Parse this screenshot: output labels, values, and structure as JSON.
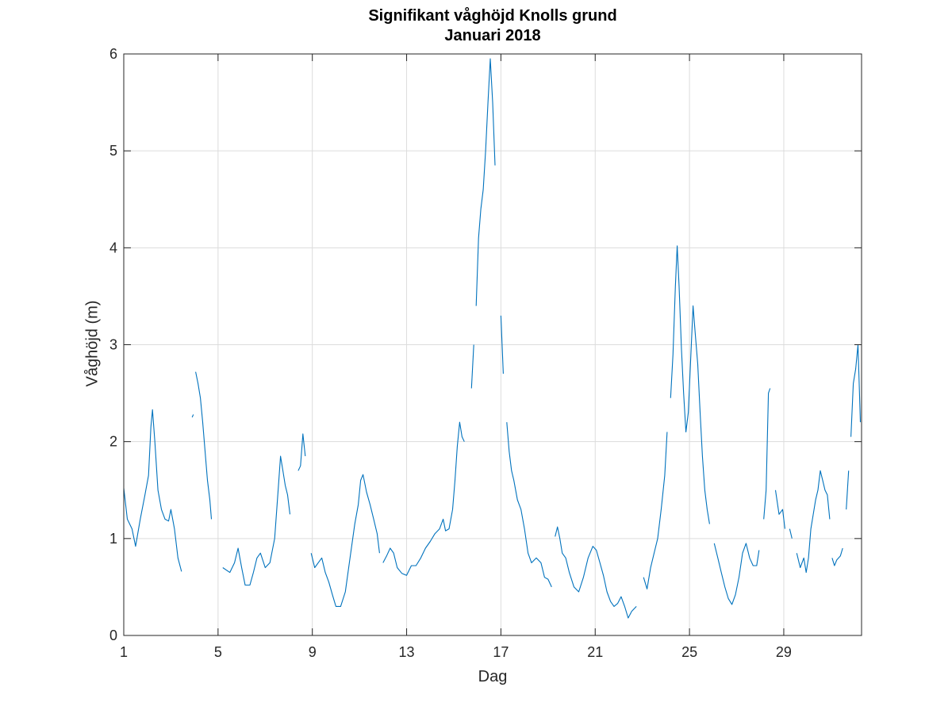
{
  "chart_data": {
    "type": "line",
    "title": "Signifikant våghöjd Knolls grund",
    "subtitle": "Januari 2018",
    "xlabel": "Dag",
    "ylabel": "Våghöjd (m)",
    "xlim": [
      1,
      32.3
    ],
    "ylim": [
      0,
      6
    ],
    "xticks": [
      1,
      5,
      9,
      13,
      17,
      21,
      25,
      29
    ],
    "yticks": [
      0,
      1,
      2,
      3,
      4,
      5,
      6
    ],
    "grid": true,
    "line_color": "#0072BD",
    "series": [
      {
        "segments": [
          [
            [
              1.0,
              1.52
            ],
            [
              1.15,
              1.2
            ],
            [
              1.35,
              1.1
            ],
            [
              1.5,
              0.92
            ],
            [
              1.7,
              1.2
            ],
            [
              1.9,
              1.45
            ],
            [
              2.05,
              1.65
            ],
            [
              2.15,
              2.15
            ],
            [
              2.22,
              2.33
            ],
            [
              2.32,
              2.0
            ],
            [
              2.45,
              1.5
            ],
            [
              2.6,
              1.3
            ],
            [
              2.75,
              1.2
            ],
            [
              2.9,
              1.18
            ],
            [
              3.0,
              1.3
            ],
            [
              3.15,
              1.1
            ],
            [
              3.3,
              0.8
            ],
            [
              3.45,
              0.66
            ]
          ],
          [
            [
              3.9,
              2.25
            ],
            [
              3.95,
              2.28
            ]
          ],
          [
            [
              4.05,
              2.72
            ],
            [
              4.15,
              2.6
            ],
            [
              4.25,
              2.45
            ],
            [
              4.35,
              2.2
            ],
            [
              4.45,
              1.9
            ],
            [
              4.55,
              1.6
            ],
            [
              4.65,
              1.4
            ],
            [
              4.72,
              1.2
            ]
          ],
          [
            [
              5.2,
              0.7
            ],
            [
              5.5,
              0.65
            ],
            [
              5.7,
              0.75
            ],
            [
              5.85,
              0.9
            ],
            [
              6.0,
              0.7
            ],
            [
              6.15,
              0.52
            ],
            [
              6.35,
              0.52
            ],
            [
              6.5,
              0.65
            ],
            [
              6.65,
              0.8
            ],
            [
              6.8,
              0.85
            ],
            [
              7.0,
              0.7
            ],
            [
              7.2,
              0.75
            ],
            [
              7.4,
              1.0
            ],
            [
              7.55,
              1.5
            ],
            [
              7.65,
              1.85
            ],
            [
              7.75,
              1.7
            ],
            [
              7.85,
              1.55
            ],
            [
              7.95,
              1.45
            ],
            [
              8.05,
              1.25
            ]
          ],
          [
            [
              8.4,
              1.7
            ],
            [
              8.5,
              1.75
            ],
            [
              8.6,
              2.08
            ],
            [
              8.7,
              1.85
            ]
          ],
          [
            [
              8.95,
              0.85
            ],
            [
              9.1,
              0.7
            ],
            [
              9.25,
              0.75
            ],
            [
              9.4,
              0.8
            ],
            [
              9.55,
              0.65
            ],
            [
              9.7,
              0.55
            ],
            [
              9.85,
              0.42
            ],
            [
              10.0,
              0.3
            ],
            [
              10.2,
              0.3
            ],
            [
              10.4,
              0.45
            ],
            [
              10.6,
              0.8
            ],
            [
              10.8,
              1.15
            ],
            [
              10.95,
              1.35
            ],
            [
              11.05,
              1.6
            ],
            [
              11.15,
              1.66
            ],
            [
              11.3,
              1.48
            ],
            [
              11.45,
              1.35
            ],
            [
              11.6,
              1.2
            ],
            [
              11.75,
              1.05
            ],
            [
              11.85,
              0.85
            ]
          ],
          [
            [
              12.0,
              0.75
            ],
            [
              12.15,
              0.82
            ],
            [
              12.3,
              0.9
            ],
            [
              12.45,
              0.85
            ],
            [
              12.6,
              0.7
            ],
            [
              12.8,
              0.64
            ],
            [
              13.0,
              0.62
            ],
            [
              13.2,
              0.72
            ],
            [
              13.4,
              0.72
            ],
            [
              13.6,
              0.8
            ],
            [
              13.8,
              0.9
            ],
            [
              14.0,
              0.97
            ],
            [
              14.2,
              1.05
            ],
            [
              14.4,
              1.1
            ],
            [
              14.55,
              1.2
            ],
            [
              14.65,
              1.08
            ],
            [
              14.8,
              1.1
            ],
            [
              14.95,
              1.3
            ],
            [
              15.05,
              1.6
            ],
            [
              15.15,
              1.95
            ],
            [
              15.25,
              2.2
            ],
            [
              15.35,
              2.05
            ],
            [
              15.45,
              2.0
            ]
          ],
          [
            [
              15.75,
              2.55
            ],
            [
              15.85,
              3.0
            ]
          ],
          [
            [
              15.95,
              3.4
            ],
            [
              16.05,
              4.1
            ],
            [
              16.15,
              4.4
            ],
            [
              16.25,
              4.6
            ],
            [
              16.35,
              5.0
            ],
            [
              16.45,
              5.5
            ],
            [
              16.55,
              5.95
            ],
            [
              16.65,
              5.5
            ],
            [
              16.75,
              4.85
            ]
          ],
          [
            [
              17.0,
              3.3
            ],
            [
              17.1,
              2.7
            ]
          ],
          [
            [
              17.25,
              2.2
            ],
            [
              17.35,
              1.9
            ],
            [
              17.45,
              1.7
            ],
            [
              17.55,
              1.6
            ],
            [
              17.7,
              1.4
            ],
            [
              17.85,
              1.3
            ],
            [
              18.0,
              1.1
            ],
            [
              18.15,
              0.85
            ],
            [
              18.3,
              0.75
            ],
            [
              18.5,
              0.8
            ],
            [
              18.7,
              0.75
            ],
            [
              18.85,
              0.6
            ],
            [
              19.0,
              0.58
            ],
            [
              19.15,
              0.5
            ]
          ],
          [
            [
              19.3,
              1.02
            ],
            [
              19.4,
              1.12
            ],
            [
              19.5,
              1.0
            ],
            [
              19.6,
              0.85
            ],
            [
              19.75,
              0.8
            ],
            [
              19.9,
              0.65
            ],
            [
              20.1,
              0.5
            ],
            [
              20.3,
              0.45
            ],
            [
              20.5,
              0.6
            ],
            [
              20.7,
              0.8
            ],
            [
              20.9,
              0.92
            ],
            [
              21.05,
              0.88
            ],
            [
              21.2,
              0.75
            ],
            [
              21.35,
              0.62
            ],
            [
              21.5,
              0.45
            ],
            [
              21.65,
              0.35
            ],
            [
              21.8,
              0.3
            ],
            [
              21.95,
              0.33
            ],
            [
              22.1,
              0.4
            ],
            [
              22.25,
              0.3
            ],
            [
              22.4,
              0.18
            ],
            [
              22.55,
              0.25
            ],
            [
              22.75,
              0.3
            ]
          ],
          [
            [
              23.05,
              0.6
            ],
            [
              23.2,
              0.48
            ],
            [
              23.35,
              0.7
            ],
            [
              23.5,
              0.85
            ],
            [
              23.65,
              1.0
            ],
            [
              23.8,
              1.3
            ],
            [
              23.95,
              1.65
            ],
            [
              24.05,
              2.1
            ]
          ],
          [
            [
              24.2,
              2.45
            ],
            [
              24.3,
              2.9
            ],
            [
              24.4,
              3.6
            ],
            [
              24.48,
              4.02
            ],
            [
              24.56,
              3.6
            ],
            [
              24.66,
              2.95
            ],
            [
              24.75,
              2.5
            ],
            [
              24.85,
              2.1
            ],
            [
              24.95,
              2.3
            ],
            [
              25.05,
              2.85
            ],
            [
              25.15,
              3.4
            ],
            [
              25.25,
              3.1
            ],
            [
              25.35,
              2.8
            ],
            [
              25.45,
              2.3
            ],
            [
              25.55,
              1.85
            ],
            [
              25.65,
              1.5
            ],
            [
              25.75,
              1.3
            ],
            [
              25.85,
              1.15
            ]
          ],
          [
            [
              26.05,
              0.95
            ],
            [
              26.2,
              0.8
            ],
            [
              26.35,
              0.65
            ],
            [
              26.5,
              0.5
            ],
            [
              26.65,
              0.38
            ],
            [
              26.8,
              0.32
            ],
            [
              26.95,
              0.42
            ],
            [
              27.1,
              0.6
            ],
            [
              27.25,
              0.85
            ],
            [
              27.4,
              0.95
            ],
            [
              27.55,
              0.8
            ],
            [
              27.7,
              0.72
            ],
            [
              27.85,
              0.72
            ],
            [
              27.95,
              0.88
            ]
          ],
          [
            [
              28.15,
              1.2
            ],
            [
              28.25,
              1.5
            ],
            [
              28.35,
              2.5
            ],
            [
              28.42,
              2.55
            ]
          ],
          [
            [
              28.65,
              1.5
            ],
            [
              28.8,
              1.25
            ],
            [
              28.95,
              1.3
            ],
            [
              29.05,
              1.1
            ]
          ],
          [
            [
              29.25,
              1.1
            ],
            [
              29.35,
              1.0
            ]
          ],
          [
            [
              29.55,
              0.85
            ],
            [
              29.7,
              0.7
            ],
            [
              29.85,
              0.8
            ],
            [
              29.95,
              0.65
            ],
            [
              30.05,
              0.8
            ],
            [
              30.15,
              1.1
            ],
            [
              30.25,
              1.25
            ],
            [
              30.35,
              1.4
            ],
            [
              30.45,
              1.5
            ],
            [
              30.55,
              1.7
            ],
            [
              30.65,
              1.6
            ],
            [
              30.75,
              1.5
            ],
            [
              30.85,
              1.45
            ],
            [
              30.95,
              1.2
            ]
          ],
          [
            [
              31.05,
              0.8
            ],
            [
              31.15,
              0.72
            ],
            [
              31.25,
              0.78
            ],
            [
              31.4,
              0.82
            ],
            [
              31.5,
              0.9
            ]
          ],
          [
            [
              31.65,
              1.3
            ],
            [
              31.75,
              1.7
            ]
          ],
          [
            [
              31.85,
              2.05
            ],
            [
              31.95,
              2.6
            ],
            [
              32.05,
              2.75
            ],
            [
              32.15,
              3.0
            ],
            [
              32.25,
              2.2
            ]
          ]
        ]
      }
    ]
  }
}
